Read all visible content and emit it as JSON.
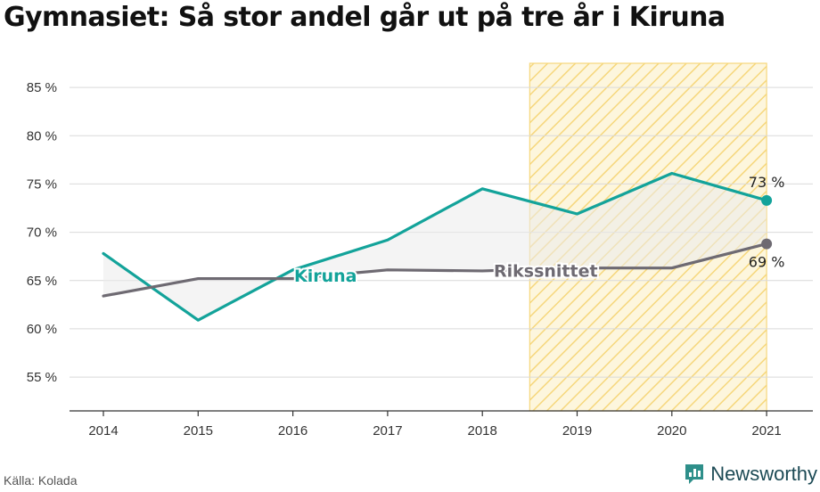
{
  "title": "Gymnasiet: Så stor andel går ut på tre år i Kiruna",
  "source": "Källa: Kolada",
  "brand": "Newsworthy",
  "colors": {
    "kiruna": "#13a39a",
    "riket": "#6e6a72",
    "highlight": "#f6d77c",
    "highlight_fill": "#fdf6dd",
    "grid": "#d9d9d9",
    "area": "#ebebeb"
  },
  "chart_data": {
    "type": "line",
    "x": [
      "2014",
      "2015",
      "2016",
      "2017",
      "2018",
      "2019",
      "2020",
      "2021"
    ],
    "ylim": [
      51.5,
      87.5
    ],
    "yticks": [
      55,
      60,
      65,
      70,
      75,
      80,
      85
    ],
    "ytick_labels": [
      "55 %",
      "60 %",
      "65 %",
      "70 %",
      "75 %",
      "80 %",
      "85 %"
    ],
    "highlight_range": [
      "2019",
      "2021"
    ],
    "series": [
      {
        "name": "Kiruna",
        "values": [
          67.8,
          60.9,
          66.1,
          69.2,
          74.5,
          71.9,
          76.1,
          73.3
        ],
        "end_label": "73 %"
      },
      {
        "name": "Rikssnittet",
        "values": [
          63.4,
          65.2,
          65.2,
          66.1,
          66.0,
          66.3,
          66.3,
          68.8
        ],
        "end_label": "69 %"
      }
    ]
  }
}
